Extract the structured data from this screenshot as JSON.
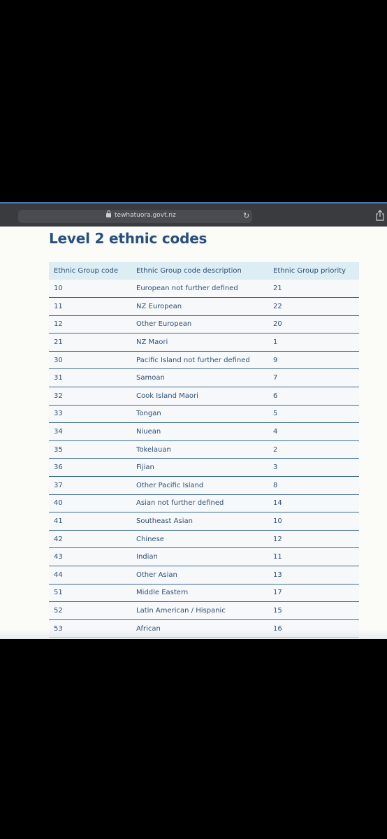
{
  "browser": {
    "url": "tewhatuora.govt.nz"
  },
  "page": {
    "title": "Level 2 ethnic codes"
  },
  "table": {
    "headers": [
      "Ethnic Group code",
      "Ethnic Group code description",
      "Ethnic Group priority"
    ],
    "rows": [
      [
        "10",
        "European not further defined",
        "21"
      ],
      [
        "11",
        "NZ European",
        "22"
      ],
      [
        "12",
        "Other European",
        "20"
      ],
      [
        "21",
        "NZ Maori",
        "1"
      ],
      [
        "30",
        "Pacific Island not further defined",
        "9"
      ],
      [
        "31",
        "Samoan",
        "7"
      ],
      [
        "32",
        "Cook Island Maori",
        "6"
      ],
      [
        "33",
        "Tongan",
        "5"
      ],
      [
        "34",
        "Niuean",
        "4"
      ],
      [
        "35",
        "Tokelauan",
        "2"
      ],
      [
        "36",
        "Fijian",
        "3"
      ],
      [
        "37",
        "Other Pacific Island",
        "8"
      ],
      [
        "40",
        "Asian not further defined",
        "14"
      ],
      [
        "41",
        "Southeast Asian",
        "10"
      ],
      [
        "42",
        "Chinese",
        "12"
      ],
      [
        "43",
        "Indian",
        "11"
      ],
      [
        "44",
        "Other Asian",
        "13"
      ],
      [
        "51",
        "Middle Eastern",
        "17"
      ],
      [
        "52",
        "Latin American / Hispanic",
        "15"
      ],
      [
        "53",
        "African",
        "16"
      ]
    ]
  },
  "colors": {
    "title": "#284f7e",
    "header_bg": "#dcedf4",
    "row_border": "#3f6a8f",
    "text": "#2f5075"
  }
}
